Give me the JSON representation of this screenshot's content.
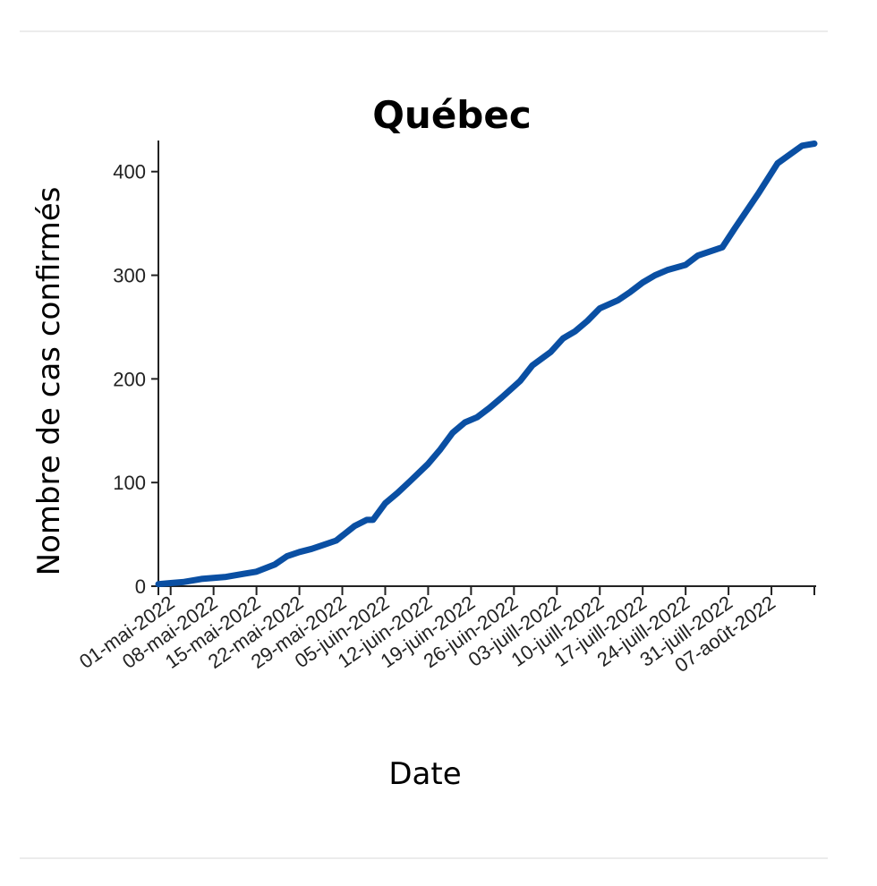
{
  "colors": {
    "line": "#0a4fa3",
    "divider": "#ececec"
  },
  "chart_data": {
    "type": "line",
    "title": "Québec",
    "xlabel": "Date",
    "ylabel": "Nombre de cas confirmés",
    "x_range": [
      "2022-04-29",
      "2022-08-14"
    ],
    "ylim": [
      0,
      430
    ],
    "yticks": [
      0,
      100,
      200,
      300,
      400
    ],
    "xticks": [
      {
        "date": "2022-05-01",
        "label": "01-mai-2022"
      },
      {
        "date": "2022-05-08",
        "label": "08-mai-2022"
      },
      {
        "date": "2022-05-15",
        "label": "15-mai-2022"
      },
      {
        "date": "2022-05-22",
        "label": "22-mai-2022"
      },
      {
        "date": "2022-05-29",
        "label": "29-mai-2022"
      },
      {
        "date": "2022-06-05",
        "label": "05-juin-2022"
      },
      {
        "date": "2022-06-12",
        "label": "12-juin-2022"
      },
      {
        "date": "2022-06-19",
        "label": "19-juin-2022"
      },
      {
        "date": "2022-06-26",
        "label": "26-juin-2022"
      },
      {
        "date": "2022-07-03",
        "label": "03-juill-2022"
      },
      {
        "date": "2022-07-10",
        "label": "10-juill-2022"
      },
      {
        "date": "2022-07-17",
        "label": "17-juill-2022"
      },
      {
        "date": "2022-07-24",
        "label": "24-juill-2022"
      },
      {
        "date": "2022-07-31",
        "label": "31-juill-2022"
      },
      {
        "date": "2022-08-07",
        "label": "07-août-2022"
      }
    ],
    "grid": false,
    "series": [
      {
        "points": [
          [
            "2022-04-29",
            2
          ],
          [
            "2022-05-01",
            3
          ],
          [
            "2022-05-03",
            4
          ],
          [
            "2022-05-06",
            7
          ],
          [
            "2022-05-10",
            9
          ],
          [
            "2022-05-13",
            12
          ],
          [
            "2022-05-15",
            14
          ],
          [
            "2022-05-18",
            21
          ],
          [
            "2022-05-20",
            29
          ],
          [
            "2022-05-22",
            33
          ],
          [
            "2022-05-24",
            36
          ],
          [
            "2022-05-26",
            40
          ],
          [
            "2022-05-28",
            44
          ],
          [
            "2022-05-31",
            58
          ],
          [
            "2022-06-02",
            64
          ],
          [
            "2022-06-03",
            64
          ],
          [
            "2022-06-05",
            80
          ],
          [
            "2022-06-07",
            90
          ],
          [
            "2022-06-09",
            101
          ],
          [
            "2022-06-12",
            118
          ],
          [
            "2022-06-14",
            132
          ],
          [
            "2022-06-16",
            148
          ],
          [
            "2022-06-18",
            158
          ],
          [
            "2022-06-20",
            163
          ],
          [
            "2022-06-22",
            172
          ],
          [
            "2022-06-24",
            182
          ],
          [
            "2022-06-27",
            198
          ],
          [
            "2022-06-29",
            213
          ],
          [
            "2022-07-02",
            226
          ],
          [
            "2022-07-04",
            239
          ],
          [
            "2022-07-06",
            246
          ],
          [
            "2022-07-08",
            256
          ],
          [
            "2022-07-10",
            268
          ],
          [
            "2022-07-13",
            276
          ],
          [
            "2022-07-15",
            284
          ],
          [
            "2022-07-17",
            293
          ],
          [
            "2022-07-19",
            300
          ],
          [
            "2022-07-21",
            305
          ],
          [
            "2022-07-24",
            310
          ],
          [
            "2022-07-26",
            319
          ],
          [
            "2022-07-30",
            327
          ],
          [
            "2022-08-01",
            345
          ],
          [
            "2022-08-05",
            380
          ],
          [
            "2022-08-08",
            408
          ],
          [
            "2022-08-12",
            425
          ],
          [
            "2022-08-14",
            427
          ]
        ]
      }
    ]
  }
}
